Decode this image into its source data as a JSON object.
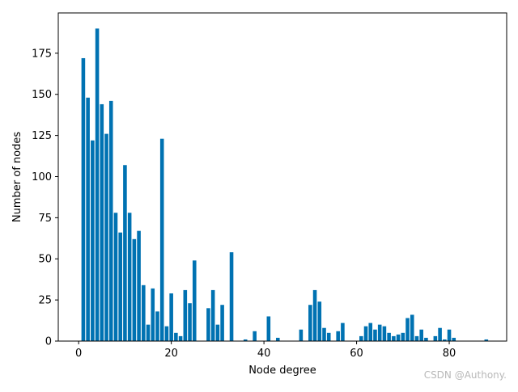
{
  "chart_data": {
    "type": "bar",
    "xlabel": "Node degree",
    "ylabel": "Number of nodes",
    "xlim": [
      -4.4,
      92.4
    ],
    "ylim": [
      0,
      199.5
    ],
    "xticks": [
      0,
      20,
      40,
      60,
      80
    ],
    "yticks": [
      0,
      25,
      50,
      75,
      100,
      125,
      150,
      175
    ],
    "bar_color": "#0072b2",
    "grid": false,
    "x": [
      1,
      2,
      3,
      4,
      5,
      6,
      7,
      8,
      9,
      10,
      11,
      12,
      13,
      14,
      15,
      16,
      17,
      18,
      19,
      20,
      21,
      22,
      23,
      24,
      25,
      28,
      29,
      30,
      31,
      33,
      36,
      38,
      41,
      43,
      48,
      50,
      51,
      52,
      53,
      54,
      56,
      57,
      61,
      62,
      63,
      64,
      65,
      66,
      67,
      68,
      69,
      70,
      71,
      72,
      73,
      74,
      75,
      77,
      78,
      79,
      80,
      81,
      88
    ],
    "values": [
      172,
      148,
      122,
      190,
      144,
      126,
      146,
      78,
      66,
      107,
      78,
      62,
      67,
      34,
      10,
      32,
      18,
      123,
      9,
      29,
      5,
      3,
      31,
      23,
      49,
      20,
      31,
      10,
      22,
      54,
      1,
      6,
      15,
      2,
      7,
      22,
      31,
      24,
      8,
      5,
      6,
      11,
      3,
      9,
      11,
      7,
      10,
      9,
      5,
      3,
      4,
      5,
      14,
      16,
      3,
      7,
      2,
      3,
      8,
      1,
      7,
      2,
      1
    ]
  },
  "watermark": "CSDN @Authony."
}
